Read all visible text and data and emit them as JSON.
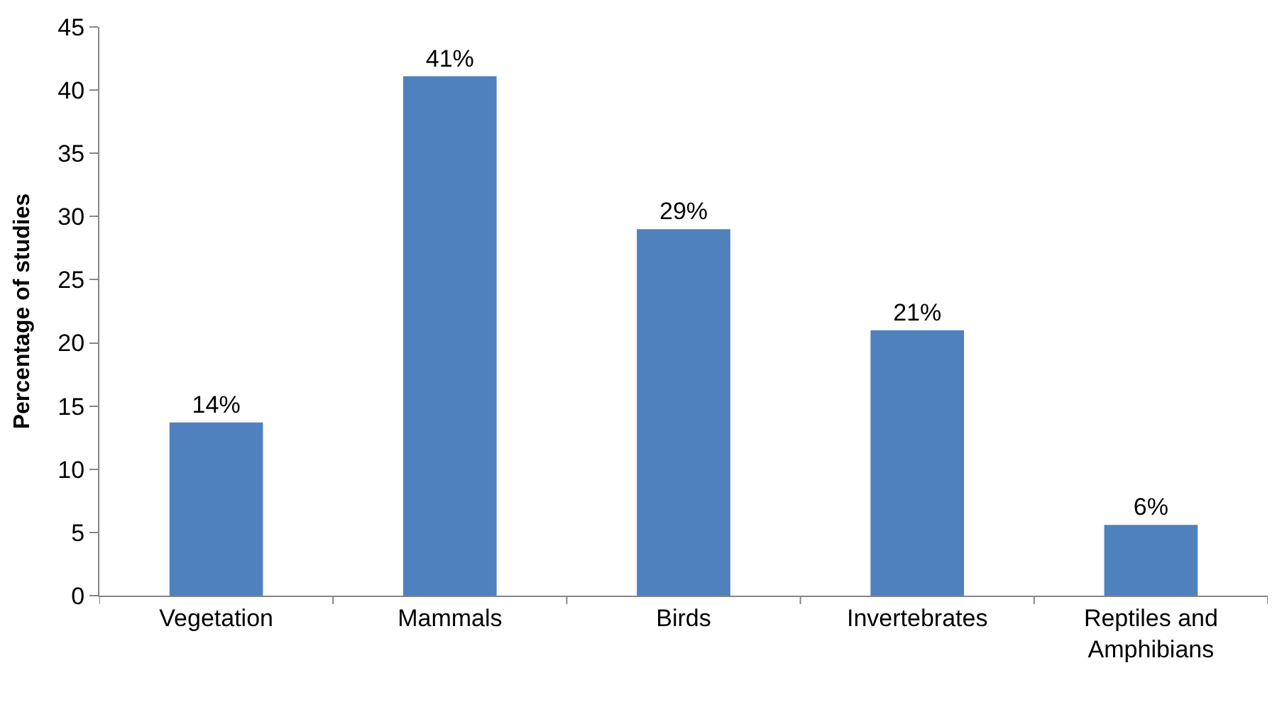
{
  "chart_data": {
    "type": "bar",
    "ylabel": "Percentage of studies",
    "categories": [
      "Vegetation",
      "Mammals",
      "Birds",
      "Invertebrates",
      "Reptiles and\nAmphibians"
    ],
    "values": [
      13.7,
      41.1,
      29.0,
      21.0,
      5.6
    ],
    "value_labels": [
      "14%",
      "41%",
      "29%",
      "21%",
      "6%"
    ],
    "color": "#4f81bd",
    "ylim": [
      0,
      45
    ],
    "yticks": [
      0,
      5,
      10,
      15,
      20,
      25,
      30,
      35,
      40,
      45
    ]
  }
}
